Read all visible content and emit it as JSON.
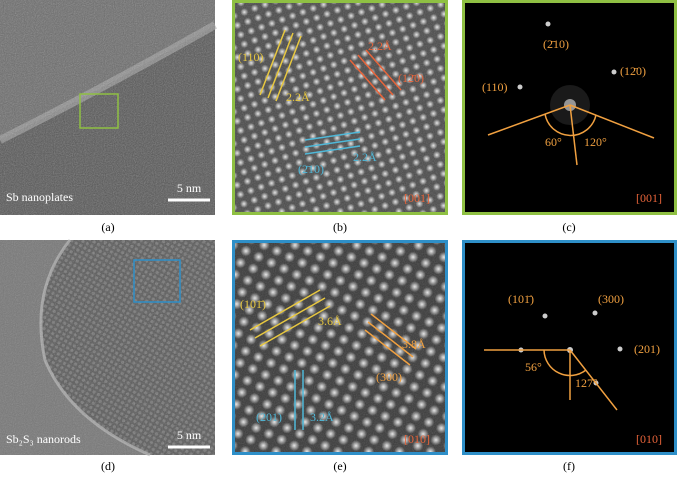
{
  "panels": [
    {
      "caption": "(a)",
      "label": "Sb nanoplates",
      "scale": "5 nm"
    },
    {
      "caption": "(b)",
      "annotations": [
        "(110)",
        "2.2Å",
        "2.2Å",
        "(12̄0)",
        "(2̄10)",
        "2.2Å"
      ],
      "zone": "[001]"
    },
    {
      "caption": "(c)",
      "annotations": [
        "(2̄10)",
        "(12̄0)",
        "(110)",
        "60°",
        "120°"
      ],
      "zone": "[001]"
    },
    {
      "caption": "(d)",
      "label": "Sb₂S₃ nanorods",
      "scale": "5 nm"
    },
    {
      "caption": "(e)",
      "annotations": [
        "(101̄)",
        "3.6Å",
        "3.8Å",
        "(300)",
        "(201)",
        "3.2Å"
      ],
      "zone": "[010]"
    },
    {
      "caption": "(f)",
      "annotations": [
        "(101̄)",
        "(300)",
        "(201)",
        "56°",
        "127°"
      ],
      "zone": "[010]"
    }
  ]
}
